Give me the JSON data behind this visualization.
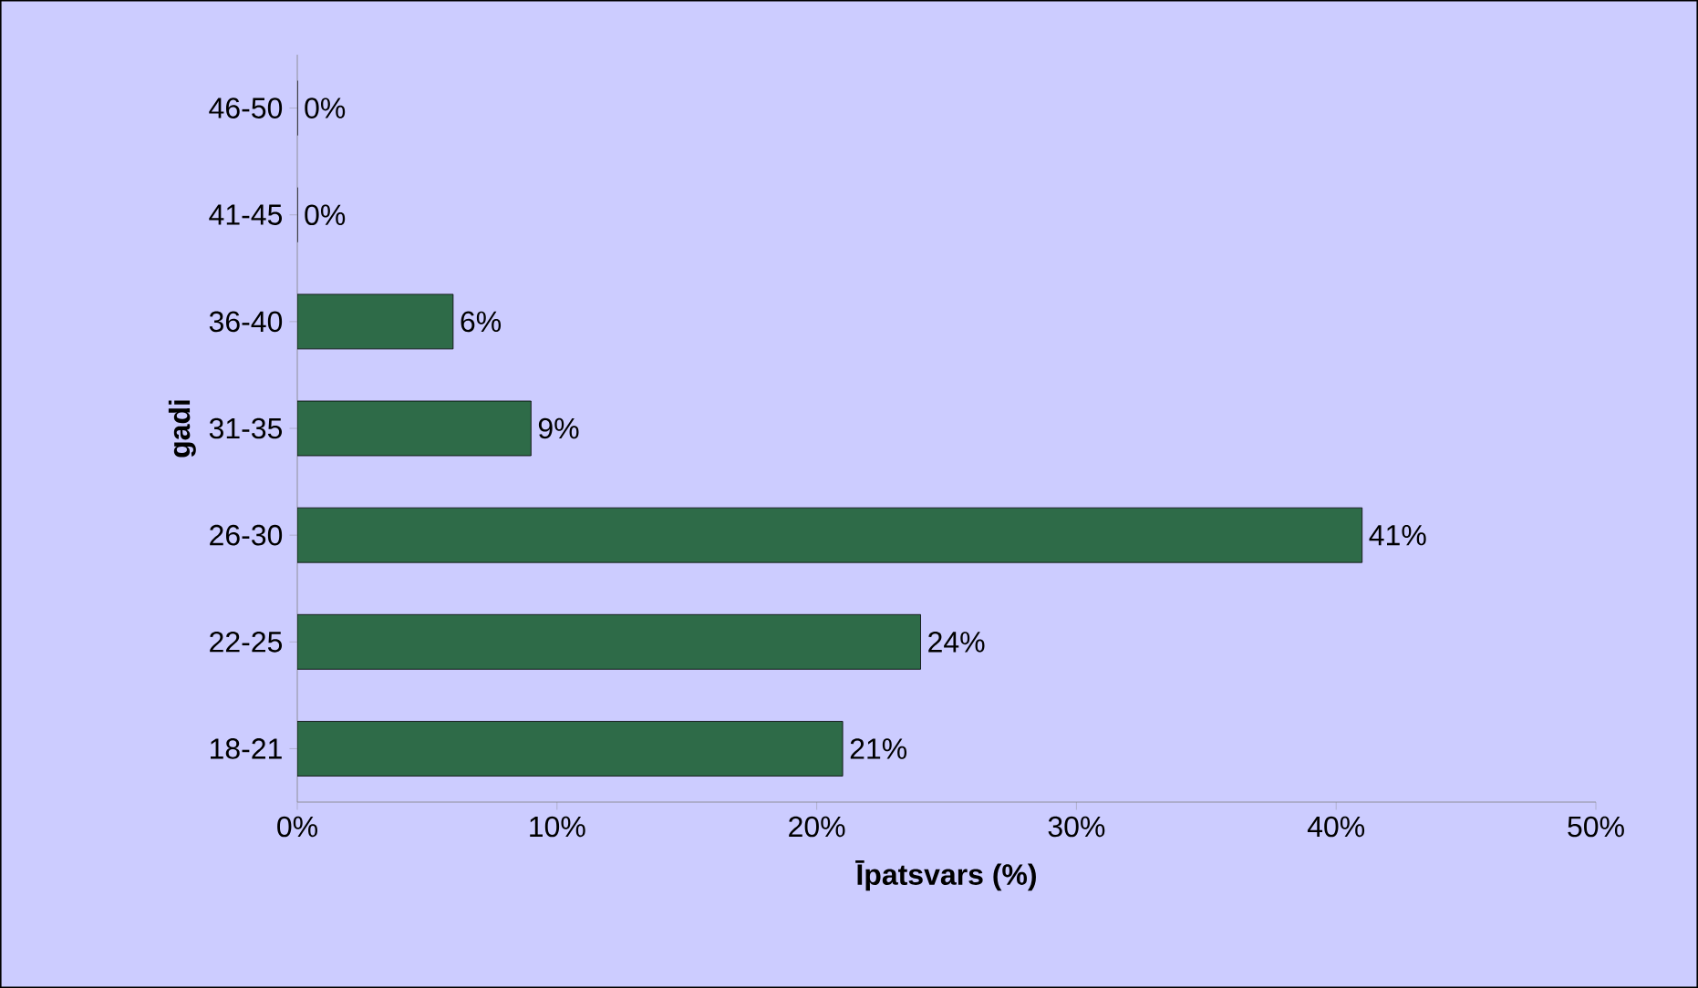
{
  "chart_data": {
    "type": "bar",
    "orientation": "horizontal",
    "xlabel": "Īpatsvars (%)",
    "ylabel": "gadi",
    "categories": [
      "46-50",
      "41-45",
      "36-40",
      "31-35",
      "26-30",
      "22-25",
      "18-21"
    ],
    "values": [
      0,
      0,
      6,
      9,
      41,
      24,
      21
    ],
    "value_labels": [
      "0%",
      "0%",
      "6%",
      "9%",
      "41%",
      "24%",
      "21%"
    ],
    "color": "#2e6b48",
    "xlim": [
      0,
      50
    ],
    "xticks": [
      {
        "value": 0,
        "label": "0%"
      },
      {
        "value": 10,
        "label": "10%"
      },
      {
        "value": 20,
        "label": "20%"
      },
      {
        "value": 30,
        "label": "30%"
      },
      {
        "value": 40,
        "label": "40%"
      },
      {
        "value": 50,
        "label": "50%"
      }
    ],
    "grid": false
  }
}
